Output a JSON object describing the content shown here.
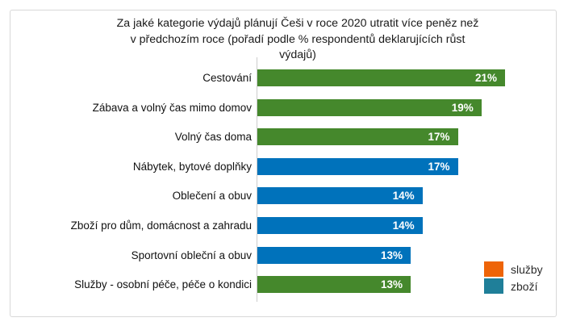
{
  "chart_data": {
    "type": "bar",
    "orientation": "horizontal",
    "title": "Za jaké kategorie výdajů plánují Češi v roce 2020 utratit více peněz než v předchozím roce (pořadí podle % respondentů deklarujících růst výdajů)",
    "title_lines": [
      "Za jaké kategorie výdajů plánují Češi v roce 2020 utratit více peněz než",
      "v předchozím roce (pořadí podle % respondentů deklarujících růst",
      "výdajů)"
    ],
    "categories": [
      "Cestování",
      "Zábava a volný čas mimo domov",
      "Volný čas doma",
      "Nábytek, bytové doplňky",
      "Oblečení a obuv",
      "Zboží pro dům, domácnost a zahradu",
      "Sportovní oblečení a obuv",
      "Služby - osobní péče, péče o kondici"
    ],
    "values": [
      21,
      19,
      17,
      17,
      14,
      14,
      13,
      13
    ],
    "bars": [
      {
        "label": "Cestování",
        "value": 21,
        "value_label": "21%",
        "group": "služby",
        "color": "#45882c"
      },
      {
        "label": "Zábava a volný čas mimo domov",
        "value": 19,
        "value_label": "19%",
        "group": "služby",
        "color": "#45882c"
      },
      {
        "label": "Volný čas doma",
        "value": 17,
        "value_label": "17%",
        "group": "služby",
        "color": "#45882c"
      },
      {
        "label": "Nábytek, bytové doplňky",
        "value": 17,
        "value_label": "17%",
        "group": "zboží",
        "color": "#0072bb"
      },
      {
        "label": "Oblečení a obuv",
        "value": 14,
        "value_label": "14%",
        "group": "zboží",
        "color": "#0072bb"
      },
      {
        "label": "Zboží pro dům, domácnost a zahradu",
        "value": 14,
        "value_label": "14%",
        "group": "zboží",
        "color": "#0072bb"
      },
      {
        "label": "Sportovní obleční a obuv",
        "value": 13,
        "value_label": "13%",
        "group": "zboží",
        "color": "#0072bb"
      },
      {
        "label": "Služby - osobní péče, péče o kondici",
        "value": 13,
        "value_label": "13%",
        "group": "služby",
        "color": "#45882c"
      }
    ],
    "xlim": [
      0,
      25
    ],
    "grid": false,
    "value_label_color": "#ffffff",
    "legend": {
      "position": "bottom-right",
      "entries": [
        {
          "label": "služby",
          "color": "#ee6408"
        },
        {
          "label": "zboží",
          "color": "#1f7f99"
        }
      ]
    }
  }
}
